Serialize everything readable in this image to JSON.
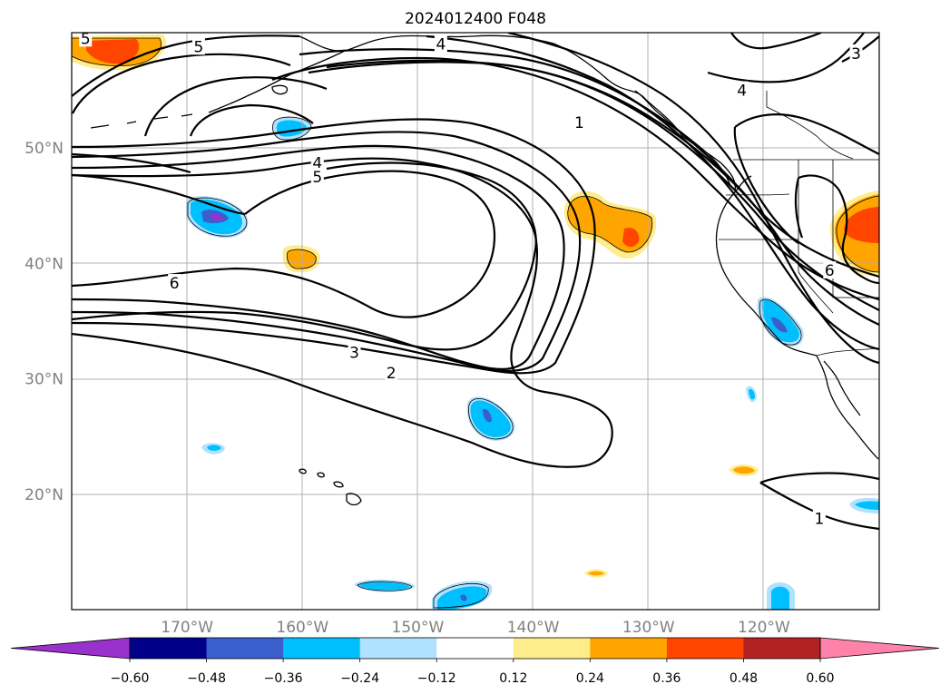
{
  "title": "2024012400 F048",
  "map": {
    "projection": "PlateCarree",
    "lon_range": [
      -180,
      -110
    ],
    "lat_range": [
      10,
      60
    ],
    "lon_ticks": [
      {
        "value": -170,
        "label": "170°W"
      },
      {
        "value": -160,
        "label": "160°W"
      },
      {
        "value": -150,
        "label": "150°W"
      },
      {
        "value": -140,
        "label": "140°W"
      },
      {
        "value": -130,
        "label": "130°W"
      },
      {
        "value": -120,
        "label": "120°W"
      }
    ],
    "lat_ticks": [
      {
        "value": 50,
        "label": "50°N"
      },
      {
        "value": 40,
        "label": "40°N"
      },
      {
        "value": 30,
        "label": "30°N"
      },
      {
        "value": 20,
        "label": "20°N"
      }
    ],
    "grid": true,
    "contour_labels": [
      {
        "text": "5",
        "lon": -169,
        "lat": 58.8
      },
      {
        "text": "4",
        "lon": -148,
        "lat": 59.0
      },
      {
        "text": "3",
        "lon": -112,
        "lat": 58.2
      },
      {
        "text": "4",
        "lon": -121.9,
        "lat": 55.0
      },
      {
        "text": "1",
        "lon": -136,
        "lat": 52.2
      },
      {
        "text": "4",
        "lon": -158.7,
        "lat": 48.7
      },
      {
        "text": "5",
        "lon": -158.7,
        "lat": 47.5
      },
      {
        "text": "6",
        "lon": -171.1,
        "lat": 38.3
      },
      {
        "text": "6",
        "lon": -114.3,
        "lat": 39.4
      },
      {
        "text": "3",
        "lon": -155.5,
        "lat": 32.3
      },
      {
        "text": "2",
        "lon": -152.3,
        "lat": 30.5
      },
      {
        "text": "1",
        "lon": -115.2,
        "lat": 17.9
      },
      {
        "text": "5",
        "lon": -178.8,
        "lat": 59.5
      }
    ]
  },
  "colorbar": {
    "colors": [
      "#9932cc",
      "#00008b",
      "#3a5fcd",
      "#00bfff",
      "#b0e2ff",
      "#ffffff",
      "#ffec8b",
      "#ffa500",
      "#ff4500",
      "#b22222",
      "#ff82ab"
    ],
    "levels": [
      -0.6,
      -0.48,
      -0.36,
      -0.24,
      -0.12,
      0.12,
      0.24,
      0.36,
      0.48,
      0.6
    ],
    "tick_labels": [
      "−0.60",
      "−0.48",
      "−0.36",
      "−0.24",
      "−0.12",
      "0.12",
      "0.24",
      "0.36",
      "0.48",
      "0.60"
    ],
    "extend": "both"
  },
  "fill_colors": {
    "light_yellow": "#ffec8b",
    "orange": "#ffa500",
    "red_orange": "#ff4500",
    "light_blue": "#b0e2ff",
    "blue": "#00bfff",
    "royal": "#3a5fcd",
    "purple": "#9932cc"
  }
}
